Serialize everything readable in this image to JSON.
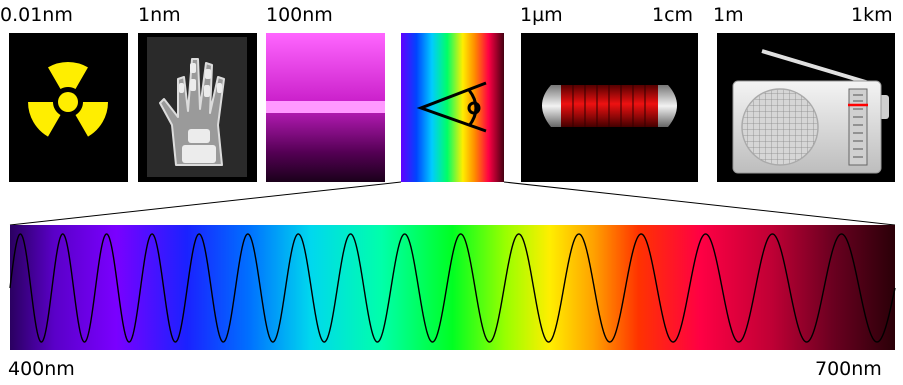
{
  "scale_labels": {
    "gamma": "0.01nm",
    "xray": "1nm",
    "uv": "100nm",
    "ir_start": "1µm",
    "ir_end": "1cm",
    "radio_start": "1m",
    "radio_end": "1km"
  },
  "visible_range": {
    "start_label": "400nm",
    "end_label": "700nm",
    "wave_cycles": 16
  },
  "icons": {
    "gamma": "radiation-trefoil-icon",
    "xray": "hand-xray-icon",
    "uv": "uv-glow-icon",
    "visible": "eye-icon",
    "infrared": "heater-element-icon",
    "radio": "radio-receiver-icon"
  },
  "colors": {
    "radiation_yellow": "#ffee00",
    "uv_pink": "#ff88ff",
    "heater_red": "#cc0000",
    "radio_marker": "#ff0000"
  }
}
